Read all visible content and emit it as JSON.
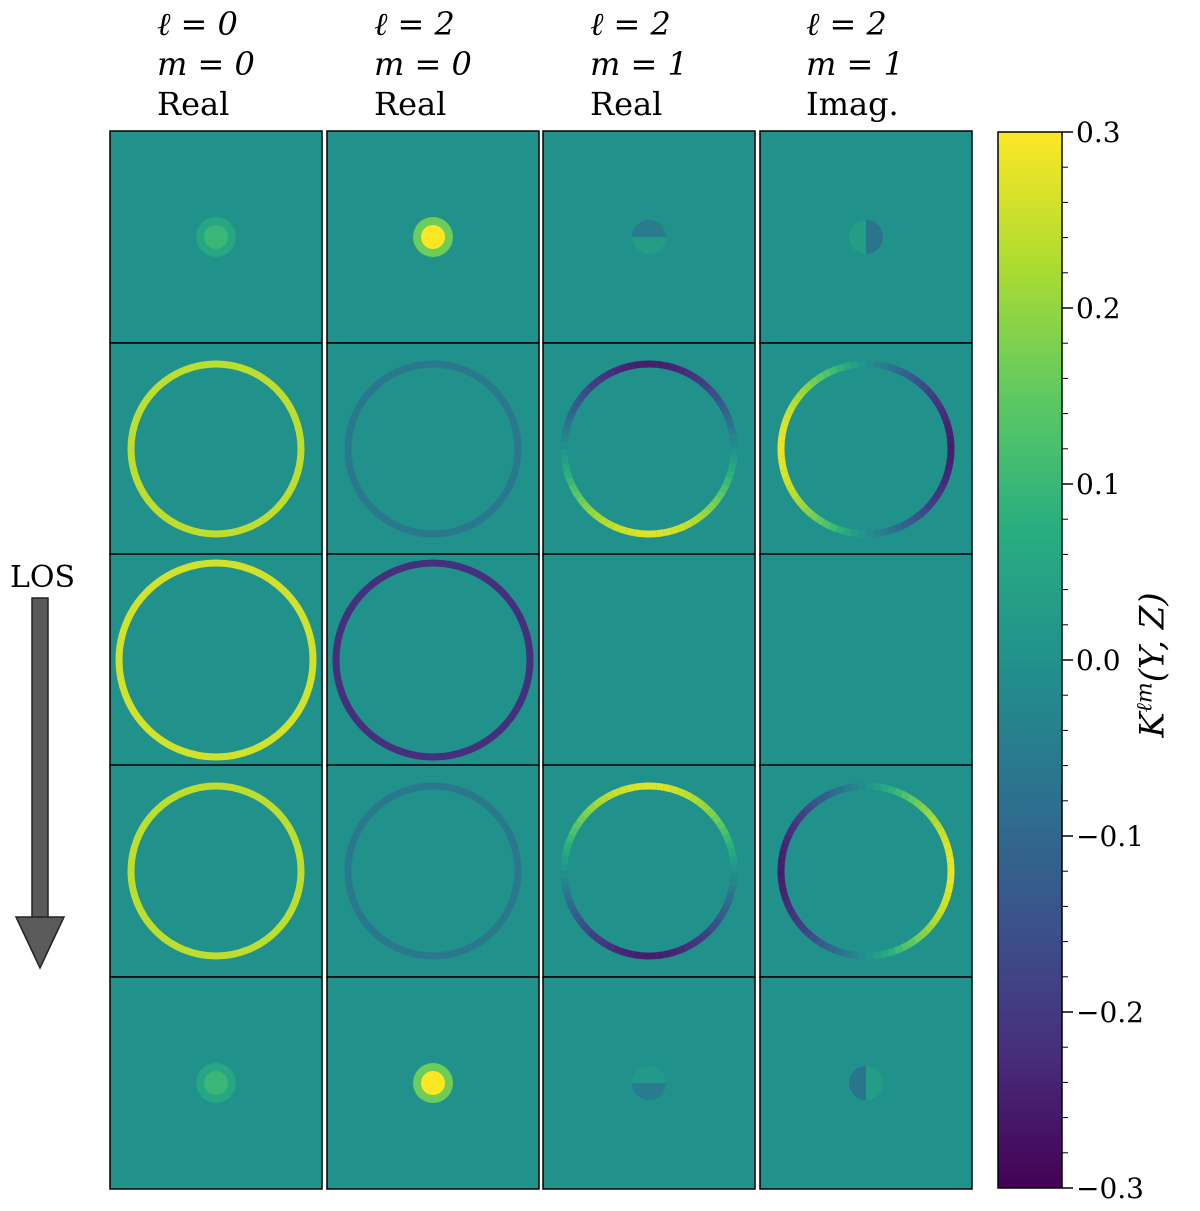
{
  "chart_data": {
    "type": "heatmap",
    "columns": [
      {
        "l": "ℓ = 0",
        "m": "m = 0",
        "part": "Real"
      },
      {
        "l": "ℓ = 2",
        "m": "m = 0",
        "part": "Real"
      },
      {
        "l": "ℓ = 2",
        "m": "m = 1",
        "part": "Real"
      },
      {
        "l": "ℓ = 2",
        "m": "m = 1",
        "part": "Imag."
      }
    ],
    "rows": 5,
    "panels": [
      [
        {
          "shape": "blob",
          "value": 0.1
        },
        {
          "shape": "blob",
          "value": 0.3
        },
        {
          "shape": "blob_vsplit",
          "top": -0.05,
          "bottom": 0.03
        },
        {
          "shape": "blob_hsplit",
          "left": 0.03,
          "right": -0.07
        }
      ],
      [
        {
          "shape": "ring",
          "size": "medium",
          "pattern": "uniform",
          "value": 0.24
        },
        {
          "shape": "ring",
          "size": "medium",
          "pattern": "uniform",
          "value": -0.06
        },
        {
          "shape": "ring",
          "size": "medium",
          "pattern": "top_bottom",
          "top": -0.25,
          "bottom": 0.27
        },
        {
          "shape": "ring",
          "size": "medium",
          "pattern": "left_right",
          "left": 0.28,
          "right": -0.25
        }
      ],
      [
        {
          "shape": "ring",
          "size": "large",
          "pattern": "uniform",
          "value": 0.26
        },
        {
          "shape": "ring",
          "size": "large",
          "pattern": "uniform",
          "value": -0.22
        },
        {
          "shape": "none",
          "value": 0.0
        },
        {
          "shape": "none",
          "value": 0.0
        }
      ],
      [
        {
          "shape": "ring",
          "size": "medium",
          "pattern": "uniform",
          "value": 0.24
        },
        {
          "shape": "ring",
          "size": "medium",
          "pattern": "uniform",
          "value": -0.06
        },
        {
          "shape": "ring",
          "size": "medium",
          "pattern": "top_bottom",
          "top": 0.27,
          "bottom": -0.25
        },
        {
          "shape": "ring",
          "size": "medium",
          "pattern": "left_right",
          "left": -0.25,
          "right": 0.28
        }
      ],
      [
        {
          "shape": "blob",
          "value": 0.1
        },
        {
          "shape": "blob",
          "value": 0.3
        },
        {
          "shape": "blob_vsplit",
          "top": 0.02,
          "bottom": -0.05
        },
        {
          "shape": "blob_hsplit",
          "left": -0.07,
          "right": 0.03
        }
      ]
    ],
    "colorbar": {
      "label": "K^{ℓm}(Y, Z)",
      "label_base": "K",
      "label_sup": "ℓm",
      "label_args": "(Y, Z)",
      "range": [
        -0.3,
        0.3
      ],
      "ticks": [
        0.3,
        0.2,
        0.1,
        0.0,
        -0.1,
        -0.2,
        -0.3
      ],
      "tick_labels": [
        "0.3",
        "0.2",
        "0.1",
        "0.0",
        "−0.1",
        "−0.2",
        "−0.3"
      ],
      "colormap": "viridis"
    },
    "annotation": "LOS"
  }
}
